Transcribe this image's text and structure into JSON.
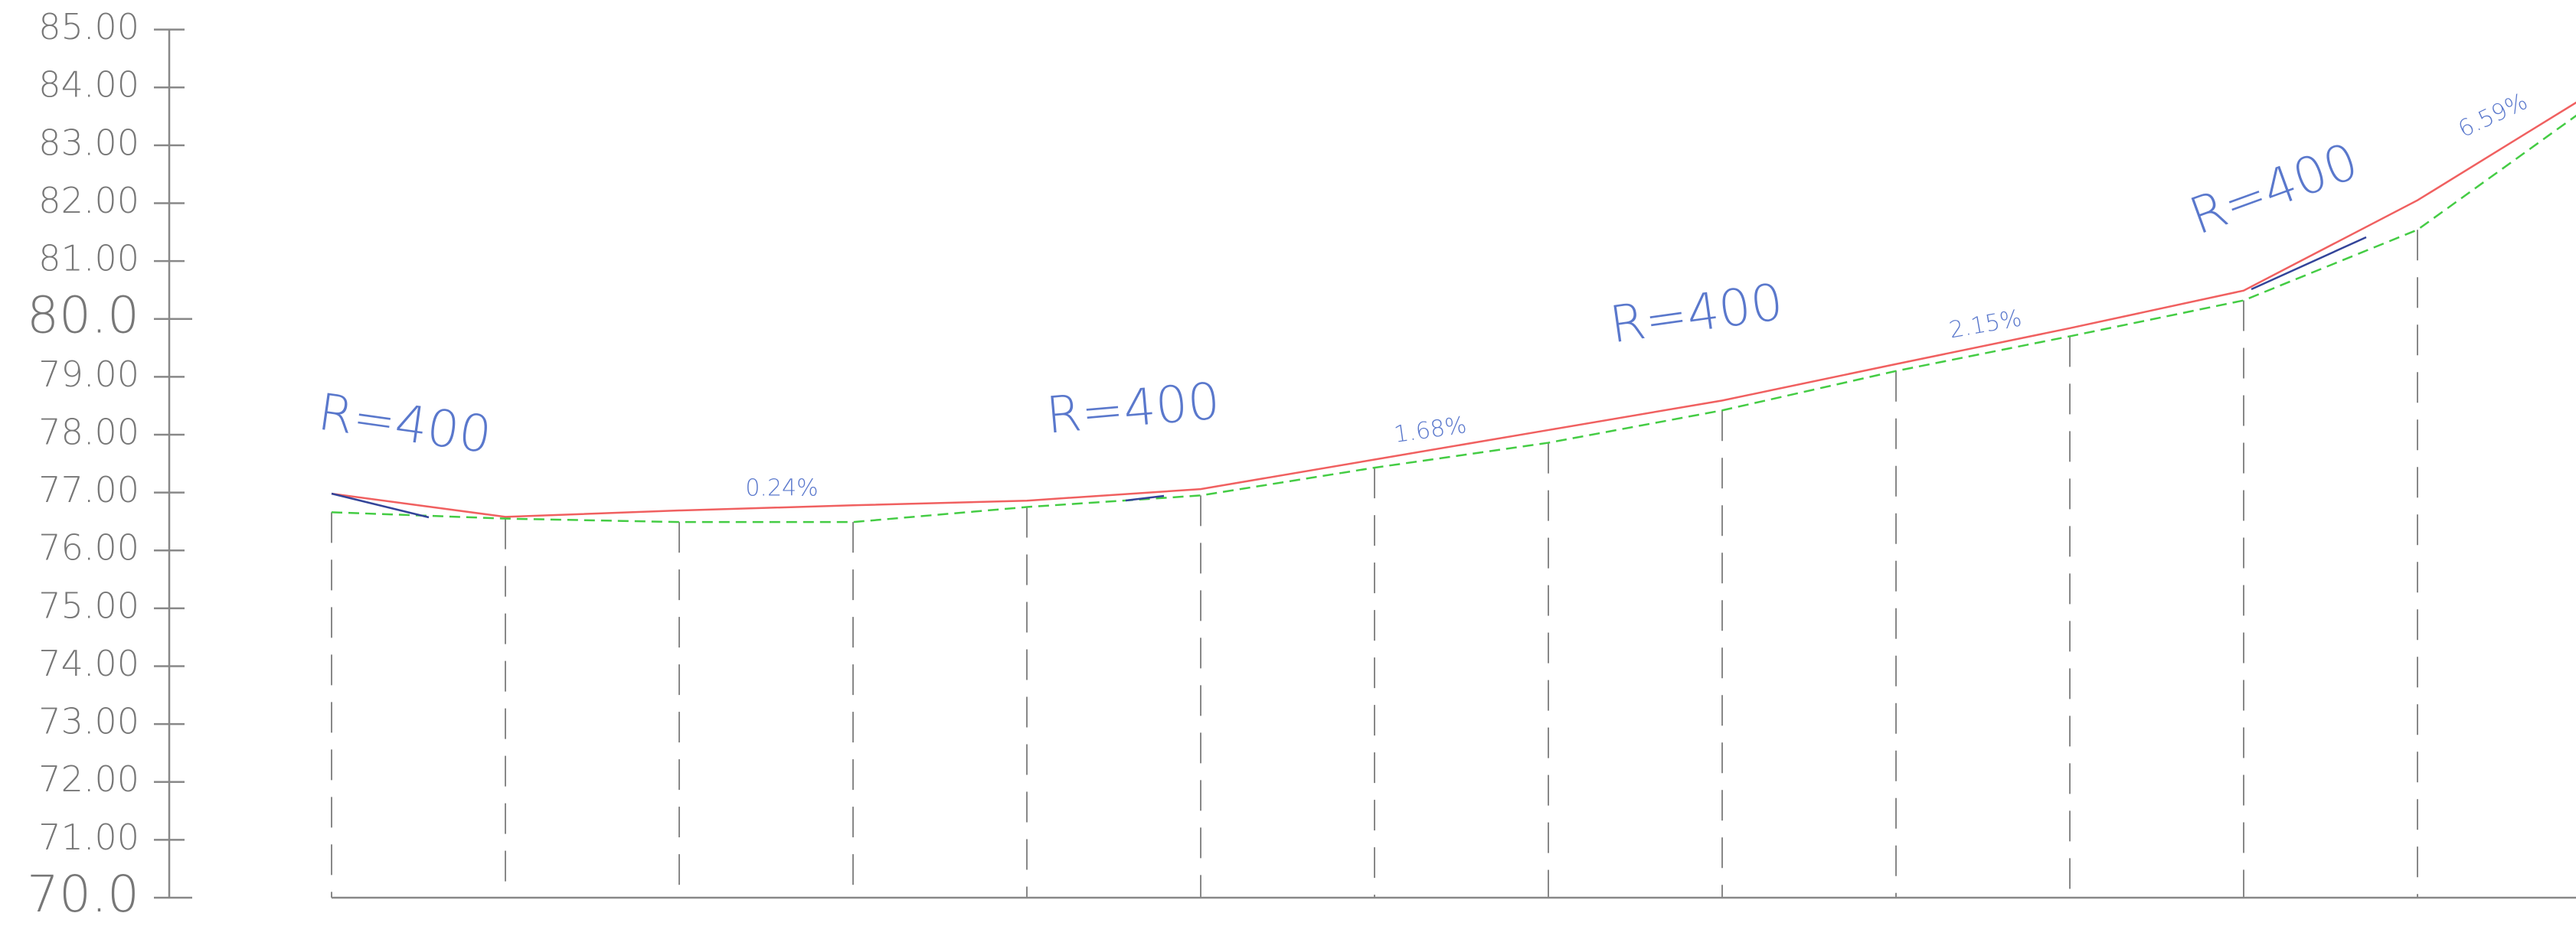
{
  "chart_data": {
    "type": "line",
    "categories": [
      null,
      null,
      null,
      null,
      null,
      null,
      null,
      null,
      null,
      null,
      null,
      null,
      null,
      null
    ],
    "ylim": [
      70,
      85
    ],
    "yticks": [
      {
        "value": 70,
        "label": "70.0"
      },
      {
        "value": 71,
        "label": "71.00"
      },
      {
        "value": 72,
        "label": "72.00"
      },
      {
        "value": 73,
        "label": "73.00"
      },
      {
        "value": 74,
        "label": "74.00"
      },
      {
        "value": 75,
        "label": "75.00"
      },
      {
        "value": 76,
        "label": "76.00"
      },
      {
        "value": 77,
        "label": "77.00"
      },
      {
        "value": 78,
        "label": "78.00"
      },
      {
        "value": 79,
        "label": "79.00"
      },
      {
        "value": 80,
        "label": "80.0"
      },
      {
        "value": 81,
        "label": "81.00"
      },
      {
        "value": 82,
        "label": "82.00"
      },
      {
        "value": 83,
        "label": "83.00"
      },
      {
        "value": 84,
        "label": "84.00"
      },
      {
        "value": 85,
        "label": "85.00"
      }
    ],
    "series": [
      {
        "color": "#f06060",
        "dashed": false,
        "values": [
          76.98,
          76.58,
          76.69,
          76.78,
          76.86,
          77.06,
          77.57,
          78.08,
          78.59,
          79.22,
          79.84,
          80.49,
          82.05,
          83.9
        ]
      },
      {
        "color": "#44cc44",
        "dashed": true,
        "values": [
          76.66,
          76.55,
          76.49,
          76.49,
          76.75,
          76.95,
          77.43,
          77.86,
          78.42,
          79.1,
          79.7,
          80.32,
          81.54,
          83.7
        ]
      }
    ],
    "annotations": [
      "R=400",
      "R=400",
      "R=400",
      "R=400",
      "0.24%",
      "1.68%",
      "2.15%",
      "6.59%"
    ]
  }
}
